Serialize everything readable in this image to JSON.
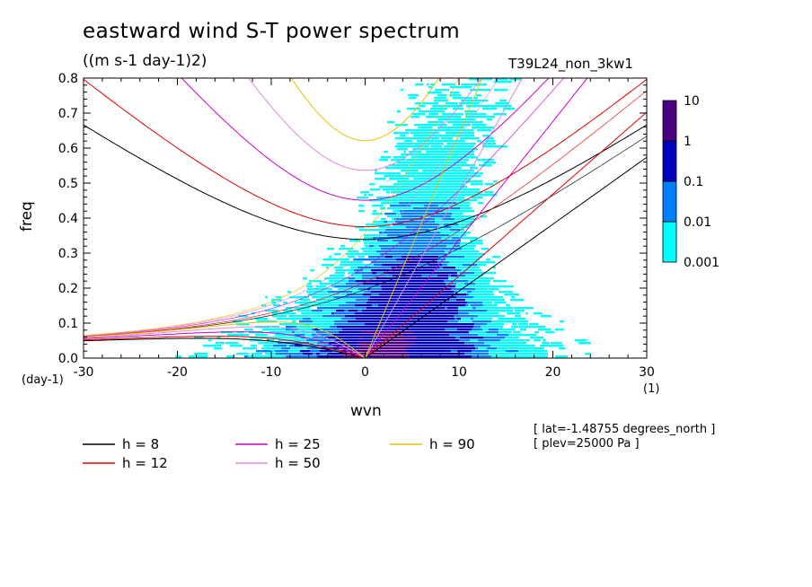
{
  "figure": {
    "title": "eastward wind S-T power spectrum",
    "units": "((m s-1 day-1)2)",
    "run": "T39L24_non_3kw1",
    "meta": [
      "[ lat=-1.48755 degrees_north ]",
      "[ plev=25000 Pa ]"
    ]
  },
  "chart_data": {
    "type": "heatmap",
    "xlabel": "wvn",
    "ylabel": "freq",
    "x_unit": "(1)",
    "y_unit": "(day-1)",
    "xlim": [
      -30,
      30
    ],
    "ylim": [
      0,
      0.8
    ],
    "x_ticks": [
      -30,
      -20,
      -10,
      0,
      10,
      20,
      30
    ],
    "x_tick_labels": [
      "-30",
      "-20",
      "-10",
      "0",
      "10",
      "20",
      "30"
    ],
    "y_ticks": [
      0.0,
      0.1,
      0.2,
      0.3,
      0.4,
      0.5,
      0.6,
      0.7,
      0.8
    ],
    "y_tick_labels": [
      "0.0",
      "0.1",
      "0.2",
      "0.3",
      "0.4",
      "0.5",
      "0.6",
      "0.7",
      "0.8"
    ],
    "colorbar": {
      "levels": [
        "0.001",
        "0.01",
        "0.1",
        "1",
        "10"
      ],
      "colors": [
        "#00ffff",
        "#0080ff",
        "#0000c0",
        "#4b0082"
      ]
    },
    "dispersion_curves": [
      {
        "label": "h =  8",
        "h": 8,
        "color": "#000000"
      },
      {
        "label": "h = 12",
        "h": 12,
        "color": "#e00000"
      },
      {
        "label": "h = 25",
        "h": 25,
        "color": "#cc00cc"
      },
      {
        "label": "h = 50",
        "h": 50,
        "color": "#dd88dd"
      },
      {
        "label": "h = 90",
        "h": 90,
        "color": "#e8c000"
      }
    ]
  }
}
